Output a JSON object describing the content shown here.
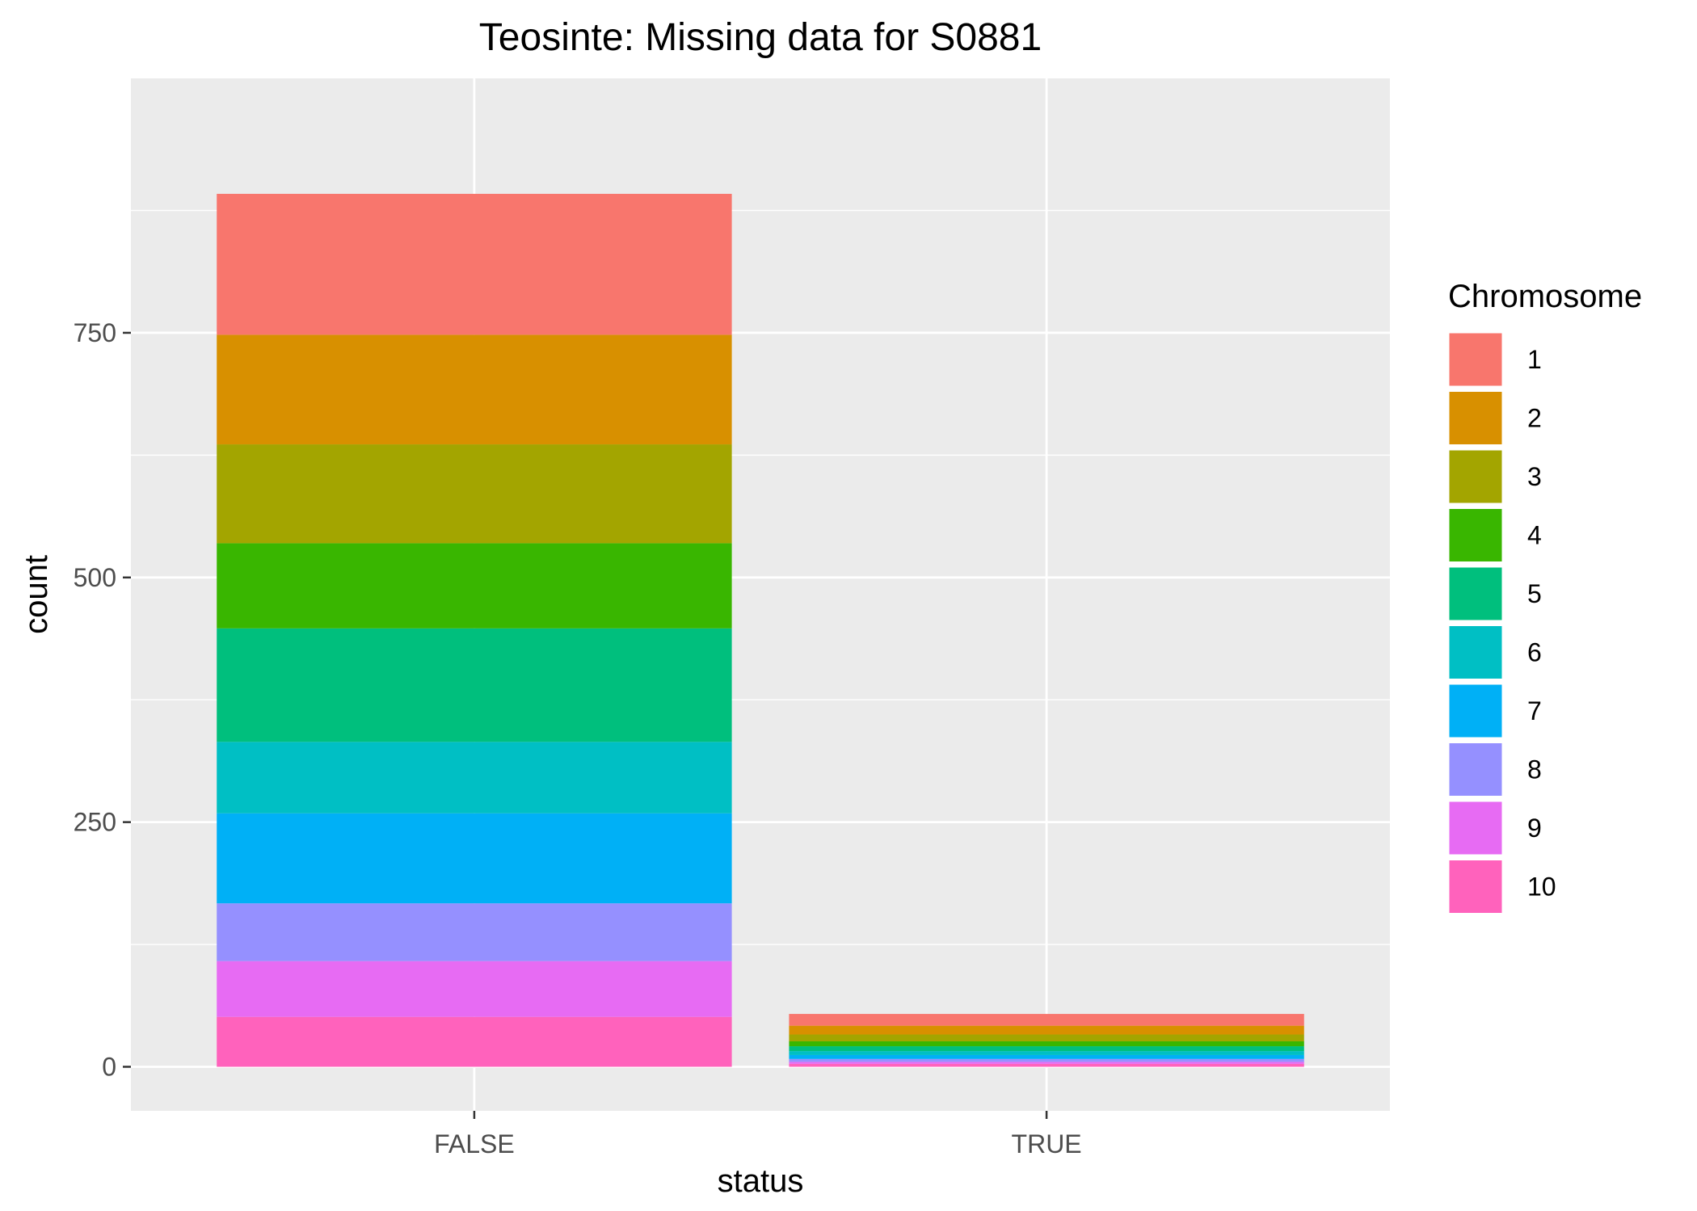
{
  "chart_data": {
    "type": "bar",
    "stacked": true,
    "title": "Teosinte: Missing data for S0881",
    "xlabel": "status",
    "ylabel": "count",
    "categories": [
      "FALSE",
      "TRUE"
    ],
    "ylim": [
      -45,
      1010
    ],
    "yticks": [
      0,
      250,
      500,
      750
    ],
    "ytick_labels": [
      "0",
      "250",
      "500",
      "750"
    ],
    "grid": true,
    "legend": {
      "title": "Chromosome",
      "position": "right"
    },
    "series": [
      {
        "name": "1",
        "color": "#F8766D",
        "values": [
          144,
          12
        ]
      },
      {
        "name": "2",
        "color": "#D89000",
        "values": [
          112,
          9
        ]
      },
      {
        "name": "3",
        "color": "#A3A500",
        "values": [
          101,
          7
        ]
      },
      {
        "name": "4",
        "color": "#39B600",
        "values": [
          87,
          5
        ]
      },
      {
        "name": "5",
        "color": "#00BF7D",
        "values": [
          116,
          5
        ]
      },
      {
        "name": "6",
        "color": "#00BFC4",
        "values": [
          73,
          4
        ]
      },
      {
        "name": "7",
        "color": "#00B0F6",
        "values": [
          92,
          4
        ]
      },
      {
        "name": "8",
        "color": "#9590FF",
        "values": [
          59,
          3
        ]
      },
      {
        "name": "9",
        "color": "#E76BF3",
        "values": [
          57,
          2
        ]
      },
      {
        "name": "10",
        "color": "#FF62BC",
        "values": [
          51,
          3
        ]
      }
    ],
    "panel_background": "#EBEBEB",
    "grid_color": "#FFFFFF"
  }
}
